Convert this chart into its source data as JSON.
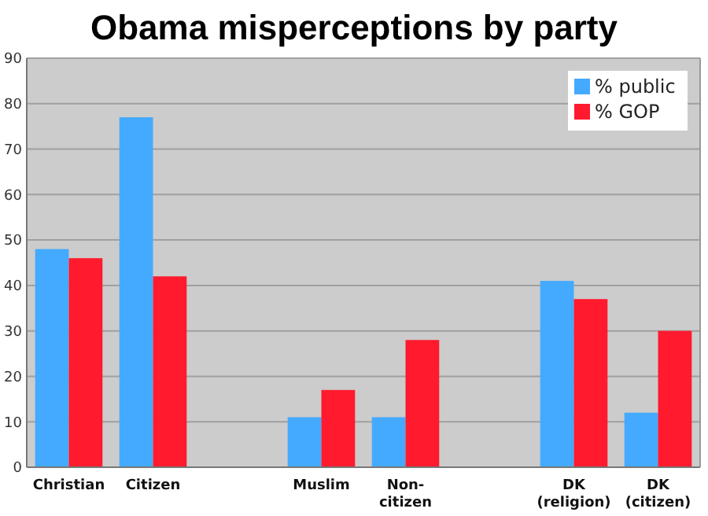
{
  "chart_data": {
    "type": "bar",
    "title": "Obama misperceptions by party",
    "categories": [
      "Christian",
      "Citizen",
      null,
      "Muslim",
      "Non-citizen",
      null,
      "DK (religion)",
      "DK (citizen)"
    ],
    "series": [
      {
        "name": "% public",
        "color": "#44aaff",
        "values": [
          48,
          77,
          null,
          11,
          11,
          null,
          41,
          12
        ]
      },
      {
        "name": "% GOP",
        "color": "#ff1a2e",
        "values": [
          46,
          42,
          null,
          17,
          28,
          null,
          37,
          30
        ]
      }
    ],
    "ylim": [
      0,
      90
    ],
    "yticks": [
      0,
      10,
      20,
      30,
      40,
      50,
      60,
      70,
      80,
      90
    ],
    "grid": "y",
    "legend": "top right"
  }
}
